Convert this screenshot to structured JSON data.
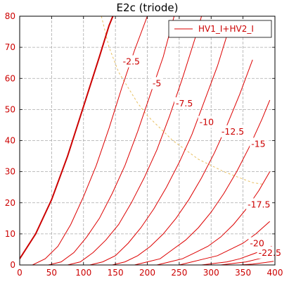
{
  "chart_data": {
    "type": "line",
    "title": "E2c (triode)",
    "xlabel": "",
    "ylabel": "",
    "xlim": [
      0,
      400
    ],
    "ylim": [
      0,
      80
    ],
    "x_ticks": [
      0,
      50,
      100,
      150,
      200,
      250,
      300,
      350,
      400
    ],
    "y_ticks": [
      0,
      10,
      20,
      30,
      40,
      50,
      60,
      70,
      80
    ],
    "grid": true,
    "legend": {
      "placement": "top-right",
      "entries": [
        "HV1_I+HV2_I"
      ]
    },
    "colors": {
      "curves": "#dd0000",
      "bold_curve": "#cc0000",
      "load_line": "#e8c060",
      "grid": "#aaaaaa"
    },
    "series": [
      {
        "label": "",
        "bold": true,
        "points": [
          [
            0,
            2
          ],
          [
            25,
            10
          ],
          [
            50,
            21
          ],
          [
            75,
            35
          ],
          [
            100,
            51
          ],
          [
            125,
            67
          ],
          [
            140,
            77
          ],
          [
            146,
            80
          ]
        ]
      },
      {
        "label": "-2.5",
        "points": [
          [
            20,
            0
          ],
          [
            40,
            2
          ],
          [
            60,
            6
          ],
          [
            80,
            13
          ],
          [
            100,
            22
          ],
          [
            120,
            32
          ],
          [
            140,
            44
          ],
          [
            160,
            57
          ],
          [
            180,
            69
          ],
          [
            200,
            80
          ]
        ]
      },
      {
        "label": "-5",
        "points": [
          [
            45,
            0
          ],
          [
            65,
            1
          ],
          [
            85,
            4
          ],
          [
            105,
            9
          ],
          [
            125,
            15
          ],
          [
            145,
            23
          ],
          [
            165,
            32
          ],
          [
            185,
            43
          ],
          [
            205,
            55
          ],
          [
            225,
            67
          ],
          [
            242,
            80
          ]
        ]
      },
      {
        "label": "-7.5",
        "points": [
          [
            75,
            0
          ],
          [
            95,
            1
          ],
          [
            115,
            4
          ],
          [
            135,
            8
          ],
          [
            155,
            13
          ],
          [
            175,
            20
          ],
          [
            195,
            28
          ],
          [
            215,
            37
          ],
          [
            235,
            48
          ],
          [
            255,
            60
          ],
          [
            275,
            73
          ],
          [
            285,
            80
          ]
        ]
      },
      {
        "label": "-10",
        "points": [
          [
            110,
            0
          ],
          [
            130,
            1
          ],
          [
            150,
            3
          ],
          [
            170,
            7
          ],
          [
            190,
            12
          ],
          [
            210,
            18
          ],
          [
            230,
            25
          ],
          [
            250,
            33
          ],
          [
            270,
            42
          ],
          [
            290,
            53
          ],
          [
            310,
            64
          ],
          [
            328,
            76
          ]
        ]
      },
      {
        "label": "-12.5",
        "points": [
          [
            145,
            0
          ],
          [
            165,
            1
          ],
          [
            185,
            3
          ],
          [
            205,
            6
          ],
          [
            225,
            10
          ],
          [
            245,
            15
          ],
          [
            265,
            21
          ],
          [
            285,
            28
          ],
          [
            305,
            36
          ],
          [
            325,
            45
          ],
          [
            345,
            55
          ],
          [
            365,
            66
          ]
        ]
      },
      {
        "label": "-15",
        "points": [
          [
            180,
            0
          ],
          [
            200,
            1
          ],
          [
            220,
            2
          ],
          [
            240,
            5
          ],
          [
            260,
            8
          ],
          [
            280,
            12
          ],
          [
            300,
            17
          ],
          [
            320,
            23
          ],
          [
            340,
            30
          ],
          [
            360,
            38
          ],
          [
            380,
            47
          ],
          [
            392,
            53
          ]
        ]
      },
      {
        "label": "-17.5",
        "points": [
          [
            215,
            0
          ],
          [
            235,
            1
          ],
          [
            255,
            2
          ],
          [
            275,
            4
          ],
          [
            295,
            6
          ],
          [
            315,
            9
          ],
          [
            335,
            13
          ],
          [
            355,
            18
          ],
          [
            375,
            24
          ],
          [
            392,
            30
          ]
        ]
      },
      {
        "label": "-20",
        "points": [
          [
            250,
            0
          ],
          [
            270,
            1
          ],
          [
            290,
            2
          ],
          [
            310,
            3
          ],
          [
            330,
            5
          ],
          [
            350,
            7
          ],
          [
            370,
            10
          ],
          [
            392,
            14
          ]
        ]
      },
      {
        "label": "-22.5",
        "points": [
          [
            285,
            0
          ],
          [
            305,
            0.5
          ],
          [
            325,
            1
          ],
          [
            345,
            2
          ],
          [
            365,
            3.5
          ],
          [
            385,
            5
          ],
          [
            395,
            6
          ]
        ]
      },
      {
        "label": "",
        "points": [
          [
            315,
            0
          ],
          [
            335,
            0.5
          ],
          [
            355,
            1
          ],
          [
            375,
            2
          ],
          [
            395,
            3
          ]
        ]
      },
      {
        "label": "",
        "points": [
          [
            345,
            0
          ],
          [
            365,
            0.3
          ],
          [
            385,
            0.8
          ],
          [
            398,
            1.2
          ]
        ]
      }
    ],
    "load_line": [
      [
        128,
        80
      ],
      [
        140,
        70
      ],
      [
        155,
        62
      ],
      [
        170,
        57
      ],
      [
        185,
        52
      ],
      [
        200,
        48
      ],
      [
        220,
        44
      ],
      [
        240,
        40
      ],
      [
        260,
        37
      ],
      [
        280,
        34
      ],
      [
        300,
        32
      ],
      [
        320,
        30
      ],
      [
        345,
        28
      ],
      [
        365,
        26.5
      ],
      [
        380,
        26
      ]
    ],
    "labels": [
      {
        "text": "-2.5",
        "x": 175,
        "y": 65.5
      },
      {
        "text": "-5",
        "x": 215,
        "y": 58.5
      },
      {
        "text": "-7.5",
        "x": 258,
        "y": 52
      },
      {
        "text": "-10",
        "x": 293,
        "y": 46
      },
      {
        "text": "-12.5",
        "x": 334,
        "y": 43
      },
      {
        "text": "-15",
        "x": 374,
        "y": 39
      },
      {
        "text": "-17.5",
        "x": 375,
        "y": 19.5
      },
      {
        "text": "-20",
        "x": 372,
        "y": 7
      },
      {
        "text": "-22.5",
        "x": 392,
        "y": 4
      }
    ]
  }
}
